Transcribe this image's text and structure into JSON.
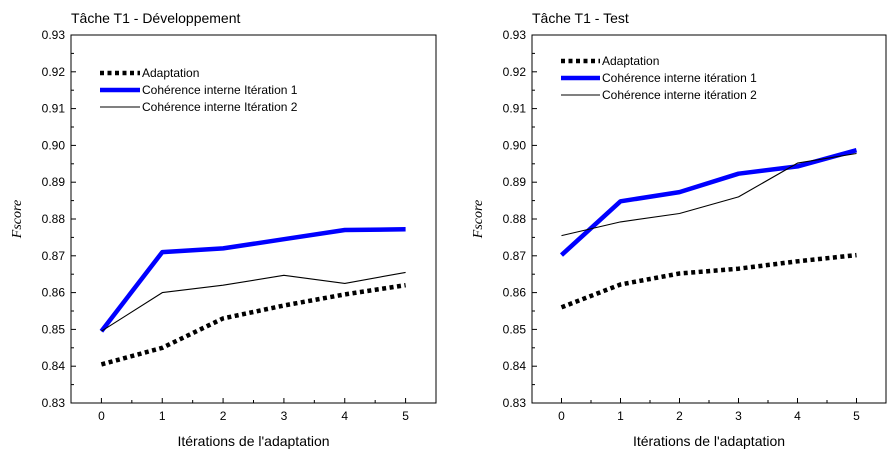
{
  "chart_data": [
    {
      "type": "line",
      "title": "Tâche T1 - Développement",
      "xlabel": "Itérations de l'adaptation",
      "ylabel": "Fscore",
      "x": [
        0,
        1,
        2,
        3,
        4,
        5
      ],
      "xlim": [
        -0.5,
        5.5
      ],
      "ylim": [
        0.83,
        0.93
      ],
      "xticks": [
        "0",
        "1",
        "2",
        "3",
        "4",
        "5"
      ],
      "yticks": [
        "0.83",
        "0.84",
        "0.85",
        "0.86",
        "0.87",
        "0.88",
        "0.89",
        "0.90",
        "0.91",
        "0.92",
        "0.93"
      ],
      "grid": false,
      "legend": "top-left",
      "series": [
        {
          "name": "Adaptation",
          "values": [
            0.8405,
            0.845,
            0.853,
            0.8565,
            0.8595,
            0.862
          ],
          "color": "#000000",
          "style": "dotted-thick"
        },
        {
          "name": "Cohérence interne Itération 1",
          "values": [
            0.8495,
            0.871,
            0.872,
            0.8745,
            0.877,
            0.8772
          ],
          "color": "#0000ff",
          "style": "solid-thick"
        },
        {
          "name": "Cohérence interne Itération 2",
          "values": [
            0.8495,
            0.86,
            0.862,
            0.8647,
            0.8625,
            0.8655
          ],
          "color": "#000000",
          "style": "solid-thin"
        }
      ]
    },
    {
      "type": "line",
      "title": "Tâche T1 - Test",
      "xlabel": "Itérations de l'adaptation",
      "ylabel": "Fscore",
      "x": [
        0,
        1,
        2,
        3,
        4,
        5
      ],
      "xlim": [
        -0.5,
        5.5
      ],
      "ylim": [
        0.83,
        0.93
      ],
      "xticks": [
        "0",
        "1",
        "2",
        "3",
        "4",
        "5"
      ],
      "yticks": [
        "0.83",
        "0.84",
        "0.85",
        "0.86",
        "0.87",
        "0.88",
        "0.89",
        "0.90",
        "0.91",
        "0.92",
        "0.93"
      ],
      "grid": false,
      "legend": "top-left",
      "series": [
        {
          "name": "Adaptation",
          "values": [
            0.856,
            0.8622,
            0.8652,
            0.8665,
            0.8685,
            0.8702
          ],
          "color": "#000000",
          "style": "dotted-thick"
        },
        {
          "name": "Cohérence interne itération 1",
          "values": [
            0.8702,
            0.8848,
            0.8873,
            0.8923,
            0.8943,
            0.8987
          ],
          "color": "#0000ff",
          "style": "solid-thick"
        },
        {
          "name": "Cohérence interne itération 2",
          "values": [
            0.8755,
            0.8792,
            0.8815,
            0.886,
            0.8952,
            0.8978
          ],
          "color": "#000000",
          "style": "solid-thin"
        }
      ]
    }
  ]
}
